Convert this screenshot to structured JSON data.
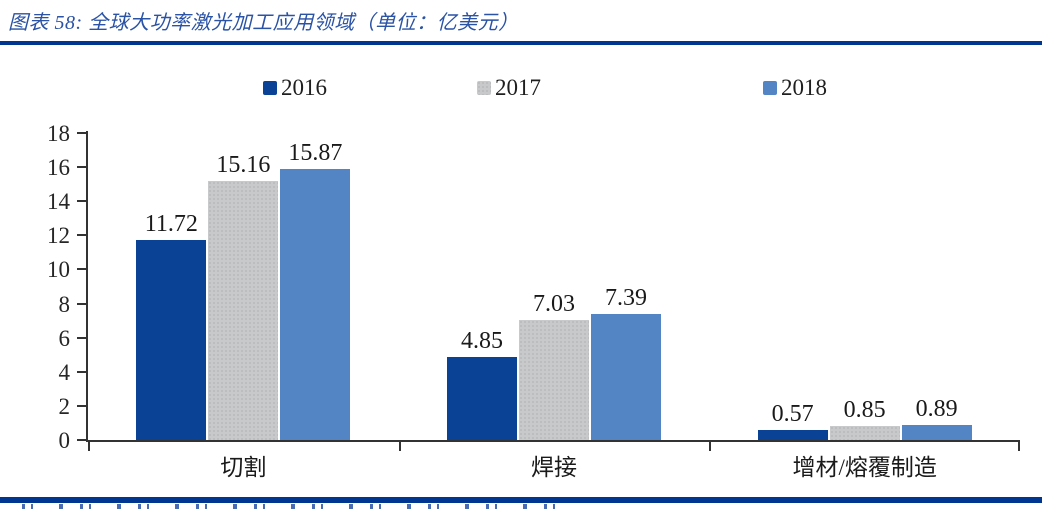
{
  "header": {
    "title": "图表 58: 全球大功率激光加工应用领域（单位：亿美元）"
  },
  "chart_data": {
    "type": "bar",
    "title": "全球大功率激光加工应用领域",
    "unit": "亿美元",
    "categories": [
      "切割",
      "焊接",
      "增材/熔覆制造"
    ],
    "series": [
      {
        "name": "2016",
        "color": "#0a4296",
        "texture": "solid",
        "values": [
          11.72,
          4.85,
          0.57
        ]
      },
      {
        "name": "2017",
        "color": "#c8c9ca",
        "texture": "dotted",
        "values": [
          15.16,
          7.03,
          0.85
        ]
      },
      {
        "name": "2018",
        "color": "#5384c4",
        "texture": "solid",
        "values": [
          15.87,
          7.39,
          0.89
        ]
      }
    ],
    "ylim": [
      0,
      18
    ],
    "ytick_step": 2,
    "legend_position": "top",
    "grid": false,
    "value_labels": true
  },
  "colors": {
    "rule_blue": "#00368f",
    "title_text": "#2a52a5",
    "axis": "#333333",
    "label_text": "#1a1a1a"
  }
}
